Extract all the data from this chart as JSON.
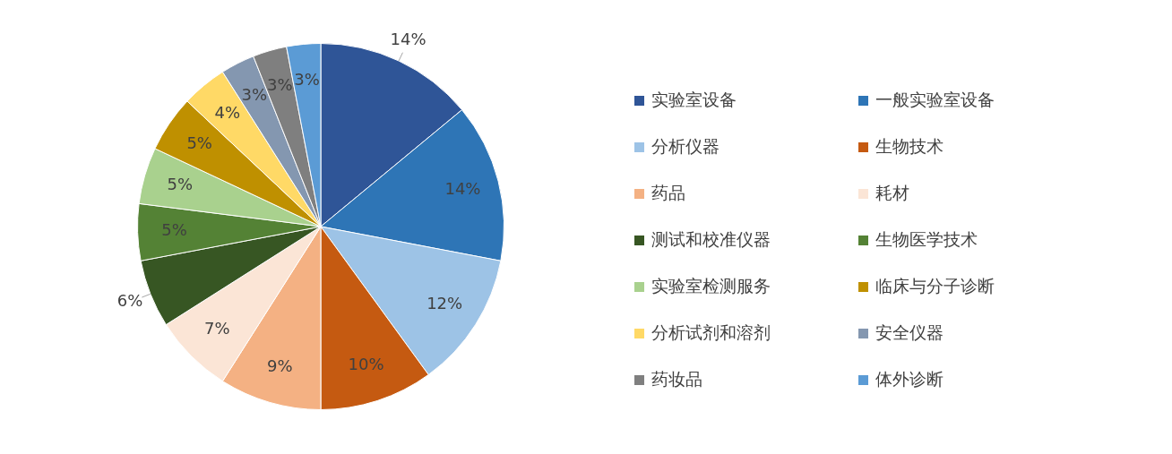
{
  "chart_data": {
    "type": "pie",
    "categories": [
      "实验室设备",
      "一般实验室设备",
      "分析仪器",
      "生物技术",
      "药品",
      "耗材",
      "测试和校准仪器",
      "生物医学技术",
      "实验室检测服务",
      "临床与分子诊断",
      "分析试剂和溶剂",
      "安全仪器",
      "药妆品",
      "体外诊断"
    ],
    "values": [
      14,
      14,
      12,
      10,
      9,
      7,
      6,
      5,
      5,
      5,
      4,
      3,
      3,
      3
    ],
    "colors": [
      "#2f5597",
      "#2e75b6",
      "#9dc3e6",
      "#c55a11",
      "#f4b183",
      "#fbe5d6",
      "#375623",
      "#548235",
      "#a9d18e",
      "#bf9000",
      "#ffd966",
      "#8497b0",
      "#7f7f7f",
      "#5b9bd5"
    ],
    "value_labels": [
      "14%",
      "14%",
      "12%",
      "10%",
      "9%",
      "7%",
      "6%",
      "5%",
      "5%",
      "5%",
      "4%",
      "3%",
      "3%",
      "3%"
    ],
    "legend": "right"
  }
}
